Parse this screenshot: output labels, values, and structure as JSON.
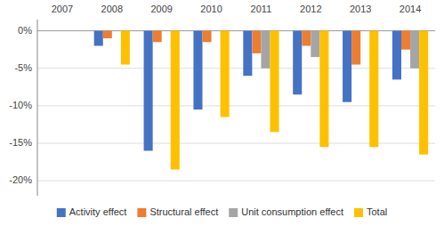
{
  "chart_data": {
    "type": "bar",
    "categories": [
      "2007",
      "2008",
      "2009",
      "2010",
      "2011",
      "2012",
      "2013",
      "2014"
    ],
    "series": [
      {
        "name": "Activity effect",
        "color": "#4472C4",
        "values": [
          0,
          -2.0,
          -16.0,
          -10.5,
          -6.0,
          -8.5,
          -9.5,
          -6.5
        ]
      },
      {
        "name": "Structural effect",
        "color": "#ED7D31",
        "values": [
          0,
          -1.0,
          -1.5,
          -1.5,
          -3.0,
          -2.0,
          -4.5,
          -2.5
        ]
      },
      {
        "name": "Unit consumption effect",
        "color": "#A5A5A5",
        "values": [
          0,
          0.0,
          0.0,
          0.0,
          -5.0,
          -3.5,
          0.0,
          -5.0
        ]
      },
      {
        "name": "Total",
        "color": "#FFC000",
        "values": [
          0,
          -4.5,
          -18.5,
          -11.5,
          -13.5,
          -15.5,
          -15.5,
          -16.5
        ]
      }
    ],
    "ylim": [
      -22,
      1.5
    ],
    "yticks": [
      {
        "value": 0,
        "label": "0%"
      },
      {
        "value": -5,
        "label": "-5%"
      },
      {
        "value": -10,
        "label": "-10%"
      },
      {
        "value": -15,
        "label": "-15%"
      },
      {
        "value": -20,
        "label": "-20%"
      }
    ],
    "grid": true,
    "legend": "bottom"
  }
}
